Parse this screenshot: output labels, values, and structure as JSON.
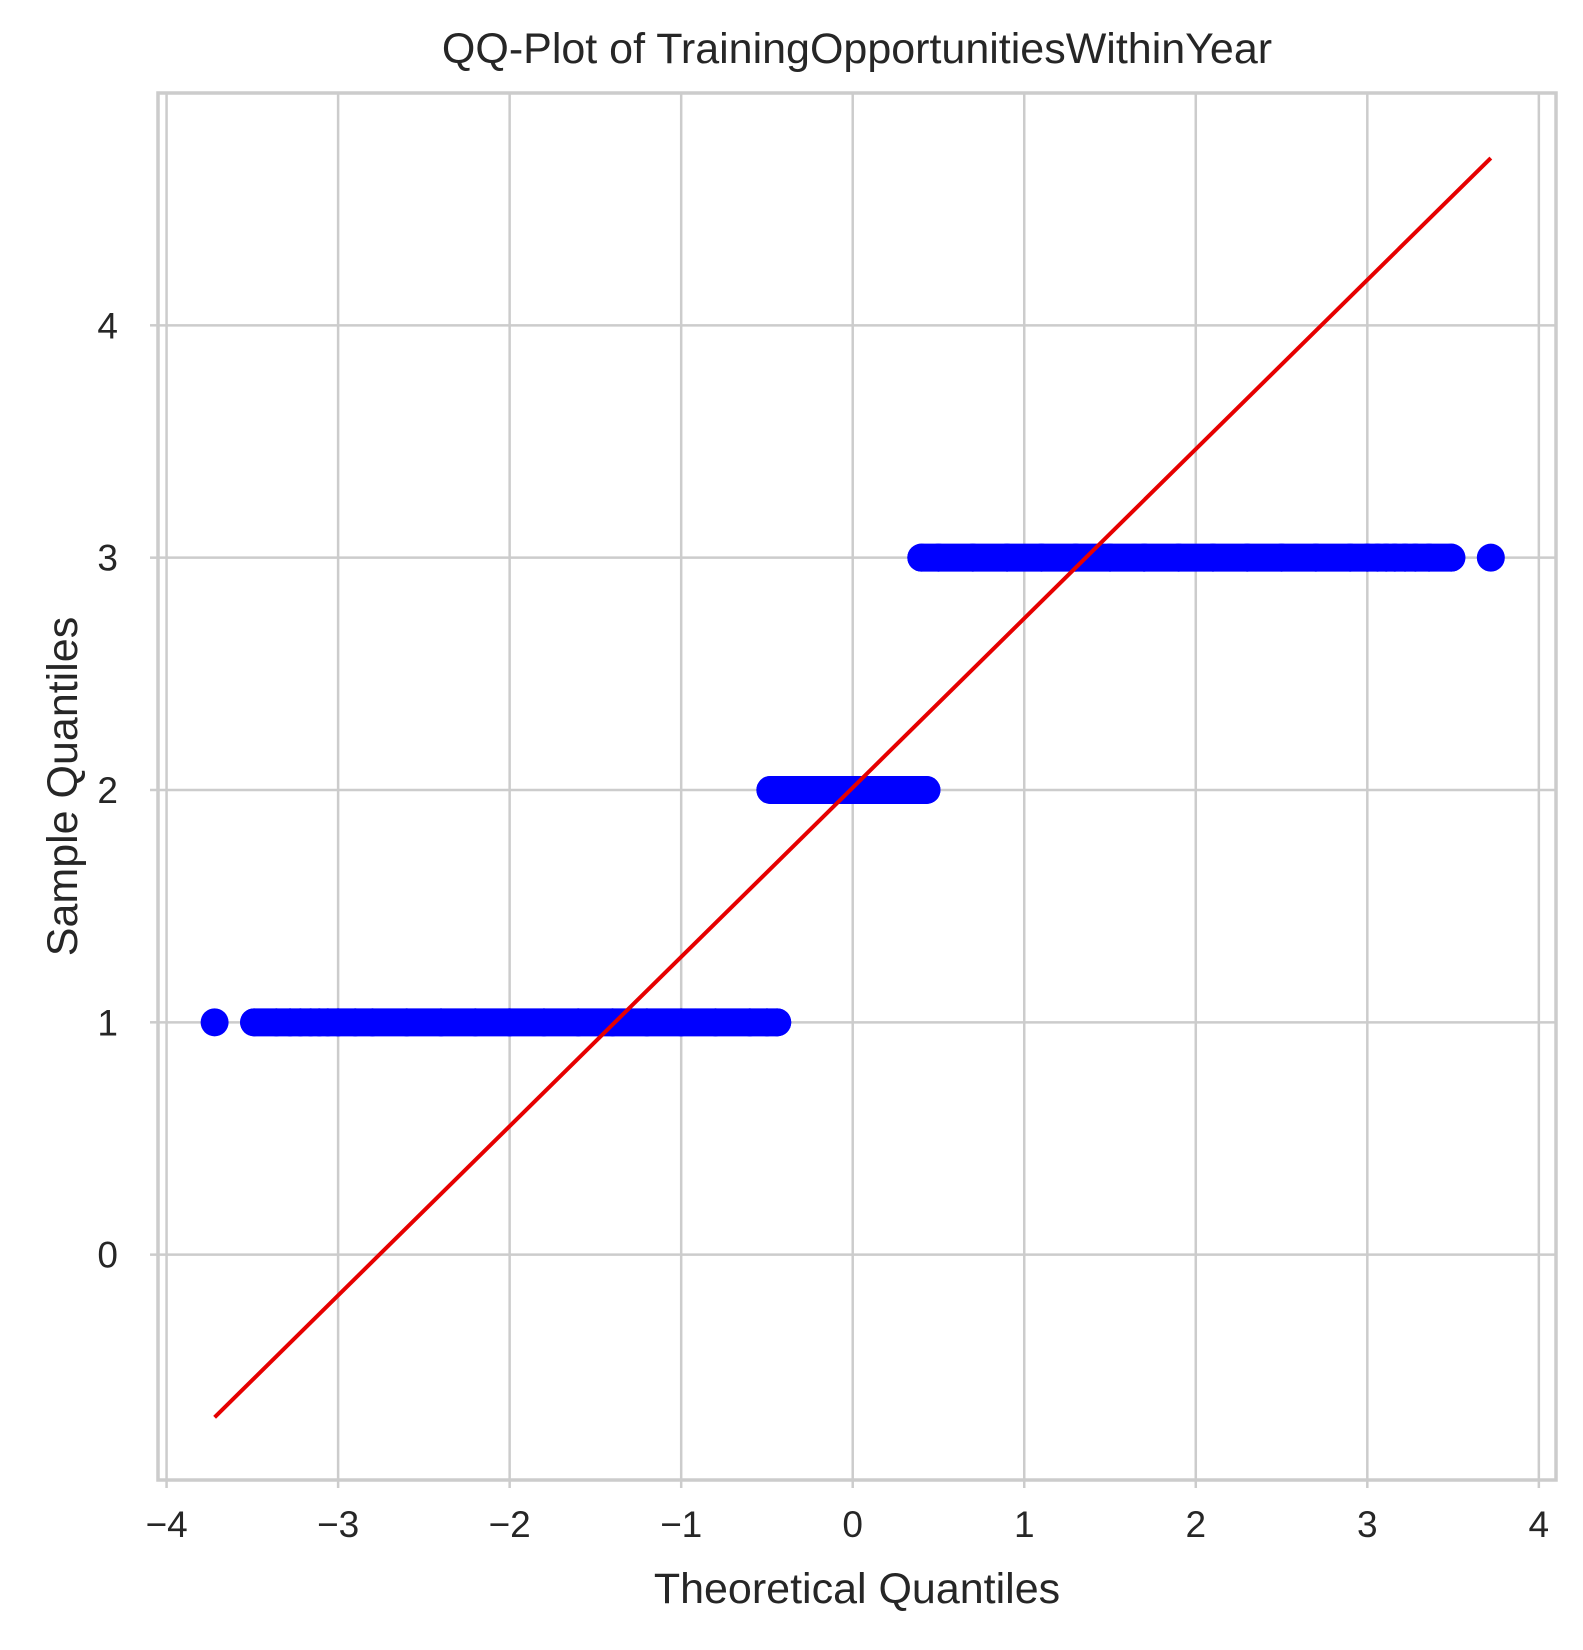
{
  "chart_data": {
    "type": "scatter",
    "title": "QQ-Plot of TrainingOpportunitiesWithinYear",
    "xlabel": "Theoretical Quantiles",
    "ylabel": "Sample Quantiles",
    "xlim": [
      -4.05,
      4.1
    ],
    "ylim": [
      -0.97,
      5.0
    ],
    "xticks": [
      -4,
      -3,
      -2,
      -1,
      0,
      1,
      2,
      3,
      4
    ],
    "xtick_labels": [
      "−4",
      "−3",
      "−2",
      "−1",
      "0",
      "1",
      "2",
      "3",
      "4"
    ],
    "yticks": [
      0,
      1,
      2,
      3,
      4
    ],
    "ytick_labels": [
      "0",
      "1",
      "2",
      "3",
      "4"
    ],
    "grid": true,
    "marker_color": "#0000ff",
    "line_color": "#e60000",
    "series": [
      {
        "kind": "points",
        "y": 1,
        "x": [
          -3.72,
          -3.49,
          -3.36,
          -3.28,
          -3.22,
          -3.16,
          -3.11,
          -3.06,
          -3.0,
          -2.9,
          -2.8,
          -2.6,
          -2.4,
          -2.2,
          -2.0,
          -1.8,
          -1.6,
          -1.4,
          -1.2,
          -1.0,
          -0.8,
          -0.6,
          -0.5,
          -0.44
        ]
      },
      {
        "kind": "points",
        "y": 2,
        "x": [
          -0.48,
          -0.4,
          -0.3,
          -0.2,
          -0.1,
          0.0,
          0.1,
          0.2,
          0.3,
          0.4,
          0.43
        ]
      },
      {
        "kind": "points",
        "y": 3,
        "x": [
          0.4,
          0.5,
          0.7,
          0.9,
          1.1,
          1.3,
          1.5,
          1.7,
          1.9,
          2.1,
          2.3,
          2.5,
          2.7,
          2.9,
          3.0,
          3.06,
          3.11,
          3.16,
          3.22,
          3.28,
          3.36,
          3.49,
          3.72
        ]
      },
      {
        "kind": "line",
        "x": [
          -3.72,
          3.72
        ],
        "y": [
          -0.7,
          4.72
        ]
      }
    ]
  }
}
